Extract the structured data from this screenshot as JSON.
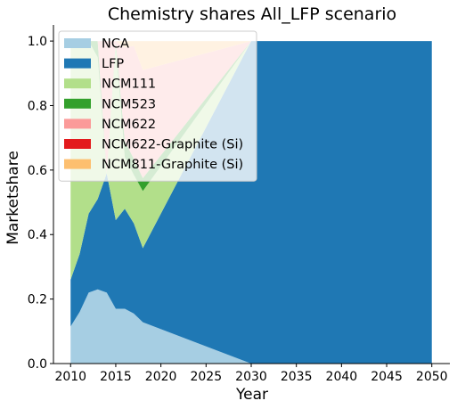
{
  "chart_data": {
    "type": "area",
    "stacked": true,
    "title": "Chemistry shares All_LFP scenario",
    "xlabel": "Year",
    "ylabel": "Marketshare",
    "xlim": [
      2008.1,
      2052.0
    ],
    "ylim": [
      0,
      1.05
    ],
    "xticks": [
      "2010",
      "2015",
      "2020",
      "2025",
      "2030",
      "2035",
      "2040",
      "2045",
      "2050"
    ],
    "yticks": [
      "0.0",
      "0.2",
      "0.4",
      "0.6",
      "0.8",
      "1.0"
    ],
    "legend_position": "top-left",
    "grid": false,
    "x": [
      2010,
      2011,
      2012,
      2013,
      2014,
      2015,
      2016,
      2017,
      2018,
      2030,
      2050
    ],
    "series": [
      {
        "name": "NCA",
        "color": "#a6cee3",
        "values": [
          0.115,
          0.16,
          0.22,
          0.23,
          0.22,
          0.17,
          0.17,
          0.155,
          0.128,
          0.0,
          0.0
        ]
      },
      {
        "name": "LFP",
        "color": "#1f78b4",
        "values": [
          0.145,
          0.18,
          0.245,
          0.28,
          0.37,
          0.275,
          0.31,
          0.28,
          0.23,
          1.0,
          1.0
        ]
      },
      {
        "name": "NCM111",
        "color": "#b2df8a",
        "values": [
          0.74,
          0.66,
          0.535,
          0.44,
          0.0,
          0.545,
          0.16,
          0.15,
          0.177,
          0.0,
          0.0
        ]
      },
      {
        "name": "NCM523",
        "color": "#33a02c",
        "values": [
          0.0,
          0.0,
          0.0,
          0.05,
          0.0,
          0.01,
          0.05,
          0.05,
          0.04,
          0.0,
          0.0
        ]
      },
      {
        "name": "NCM622",
        "color": "#fb9a99",
        "values": [
          0.0,
          0.0,
          0.0,
          0.0,
          0.41,
          0.0,
          0.29,
          0.35,
          0.335,
          0.0,
          0.0
        ]
      },
      {
        "name": "NCM622-Graphite (Si)",
        "color": "#e31a1c",
        "values": [
          0.0,
          0.0,
          0.0,
          0.0,
          0.0,
          0.0,
          0.0,
          0.0,
          0.0,
          0.0,
          0.0
        ]
      },
      {
        "name": "NCM811-Graphite (Si)",
        "color": "#fdbf6f",
        "values": [
          0.0,
          0.0,
          0.0,
          0.0,
          0.0,
          0.0,
          0.02,
          0.015,
          0.09,
          0.0,
          0.0
        ]
      }
    ]
  }
}
